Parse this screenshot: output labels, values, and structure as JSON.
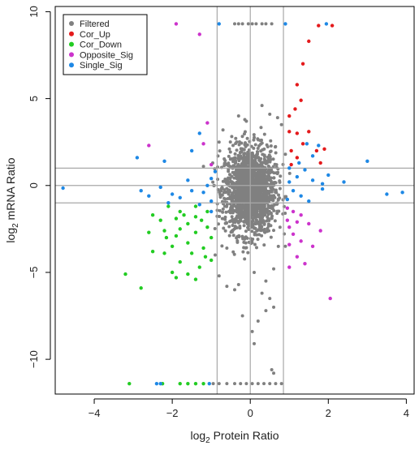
{
  "chart_data": {
    "type": "scatter",
    "title": "",
    "xlabel": "Protein Ratio",
    "xlabel_prefix": "log",
    "xlabel_sub": "2",
    "ylabel": "mRNA Ratio",
    "ylabel_prefix": "log",
    "ylabel_sub": "2",
    "xlim": [
      -5.0,
      4.2
    ],
    "ylim": [
      -12.0,
      10.3
    ],
    "xticks": [
      -4,
      -2,
      0,
      2,
      4
    ],
    "yticks": [
      -10,
      -5,
      0,
      5,
      10
    ],
    "grid": false,
    "legend": "top-left",
    "thresholds": {
      "x": [
        -0.85,
        0.0,
        0.85
      ],
      "y": [
        -1.0,
        0.0,
        1.0
      ]
    },
    "series": [
      {
        "name": "Filtered",
        "color": "#808080",
        "count": 1800,
        "points": [
          [
            -0.4,
            9.3
          ],
          [
            -0.3,
            9.3
          ],
          [
            -0.2,
            9.3
          ],
          [
            -0.05,
            9.3
          ],
          [
            0.05,
            9.3
          ],
          [
            0.15,
            9.3
          ],
          [
            0.3,
            9.3
          ],
          [
            0.4,
            9.3
          ],
          [
            0.55,
            9.3
          ],
          [
            -0.95,
            -11.4
          ],
          [
            -0.8,
            -11.4
          ],
          [
            -0.6,
            -11.4
          ],
          [
            -0.4,
            -11.4
          ],
          [
            -0.25,
            -11.4
          ],
          [
            -0.1,
            -11.4
          ],
          [
            0.05,
            -11.4
          ],
          [
            0.2,
            -11.4
          ],
          [
            0.35,
            -11.4
          ],
          [
            0.5,
            -11.4
          ],
          [
            0.65,
            -11.4
          ],
          [
            0.8,
            -11.4
          ],
          [
            0.5,
            -6.5
          ],
          [
            0.4,
            -7.2
          ],
          [
            0.05,
            -8.4
          ],
          [
            0.1,
            -9.1
          ],
          [
            0.6,
            -7.0
          ],
          [
            -0.4,
            -6.0
          ],
          [
            0.6,
            -10.8
          ],
          [
            0.55,
            -10.6
          ],
          [
            -0.2,
            -7.5
          ],
          [
            0.3,
            -6.2
          ],
          [
            -0.6,
            -5.8
          ],
          [
            0.2,
            -7.8
          ],
          [
            0.3,
            4.6
          ],
          [
            0.5,
            4.1
          ],
          [
            -0.3,
            4.0
          ],
          [
            0.8,
            3.5
          ],
          [
            0.7,
            3.9
          ],
          [
            -0.8,
            2.5
          ],
          [
            0.9,
            1.8
          ],
          [
            -1.2,
            1.1
          ],
          [
            -0.7,
            3.2
          ],
          [
            -0.1,
            3.7
          ],
          [
            -0.9,
            -4.0
          ],
          [
            0.9,
            -3.5
          ],
          [
            -0.6,
            -3.6
          ],
          [
            0.6,
            -4.8
          ],
          [
            -0.8,
            -5.2
          ],
          [
            0.1,
            -5.0
          ],
          [
            0.4,
            -5.5
          ],
          [
            -0.3,
            -5.7
          ]
        ],
        "cloud": {
          "center": [
            0.0,
            -0.3
          ],
          "sd": [
            0.32,
            1.25
          ],
          "n": 1750
        }
      },
      {
        "name": "Cor_Up",
        "color": "#e41a1c",
        "points": [
          [
            1.75,
            9.2
          ],
          [
            2.1,
            9.2
          ],
          [
            1.5,
            8.3
          ],
          [
            1.35,
            7.0
          ],
          [
            1.2,
            5.8
          ],
          [
            1.15,
            4.4
          ],
          [
            1.3,
            4.9
          ],
          [
            1.0,
            4.0
          ],
          [
            1.0,
            3.1
          ],
          [
            1.2,
            3.0
          ],
          [
            1.5,
            3.1
          ],
          [
            1.05,
            2.0
          ],
          [
            1.35,
            2.4
          ],
          [
            1.7,
            2.0
          ],
          [
            1.2,
            1.6
          ],
          [
            1.05,
            1.2
          ],
          [
            1.9,
            2.1
          ],
          [
            1.8,
            1.3
          ]
        ]
      },
      {
        "name": "Cor_Down",
        "color": "#22cc22",
        "points": [
          [
            -1.4,
            -1.2
          ],
          [
            -1.1,
            -1.5
          ],
          [
            -1.8,
            -1.5
          ],
          [
            -2.1,
            -1.2
          ],
          [
            -1.4,
            -1.8
          ],
          [
            -1.9,
            -1.9
          ],
          [
            -2.3,
            -2.0
          ],
          [
            -1.6,
            -2.2
          ],
          [
            -1.1,
            -2.4
          ],
          [
            -1.8,
            -2.5
          ],
          [
            -2.2,
            -2.6
          ],
          [
            -1.4,
            -2.7
          ],
          [
            -1.9,
            -2.9
          ],
          [
            -1.0,
            -3.0
          ],
          [
            -2.6,
            -2.7
          ],
          [
            -1.6,
            -3.3
          ],
          [
            -1.2,
            -3.6
          ],
          [
            -2.0,
            -3.5
          ],
          [
            -1.5,
            -3.9
          ],
          [
            -2.2,
            -3.9
          ],
          [
            -1.0,
            -4.3
          ],
          [
            -1.8,
            -4.4
          ],
          [
            -1.3,
            -4.7
          ],
          [
            -2.5,
            -3.8
          ],
          [
            -1.9,
            -5.3
          ],
          [
            -1.6,
            -5.1
          ],
          [
            -1.4,
            -5.4
          ],
          [
            -1.15,
            -4.1
          ],
          [
            -2.0,
            -5.0
          ],
          [
            -3.2,
            -5.1
          ],
          [
            -2.8,
            -5.9
          ],
          [
            -2.5,
            -1.7
          ],
          [
            -1.25,
            -2.0
          ],
          [
            -1.7,
            -1.7
          ],
          [
            -2.15,
            -3.0
          ],
          [
            -3.1,
            -11.4
          ],
          [
            -2.25,
            -11.4
          ],
          [
            -1.8,
            -11.4
          ],
          [
            -1.6,
            -11.4
          ],
          [
            -1.4,
            -11.4
          ],
          [
            -1.2,
            -11.4
          ]
        ]
      },
      {
        "name": "Opposite_Sig",
        "color": "#cc33cc",
        "points": [
          [
            -1.9,
            9.3
          ],
          [
            -1.3,
            8.7
          ],
          [
            -1.1,
            3.6
          ],
          [
            -1.2,
            2.4
          ],
          [
            -2.6,
            2.3
          ],
          [
            -1.0,
            1.2
          ],
          [
            0.95,
            -1.3
          ],
          [
            1.1,
            -1.5
          ],
          [
            1.3,
            -1.7
          ],
          [
            0.95,
            -2.0
          ],
          [
            1.2,
            -2.1
          ],
          [
            1.0,
            -2.4
          ],
          [
            1.5,
            -2.2
          ],
          [
            1.1,
            -2.8
          ],
          [
            1.3,
            -3.2
          ],
          [
            1.0,
            -3.4
          ],
          [
            1.6,
            -3.5
          ],
          [
            1.2,
            -4.1
          ],
          [
            1.4,
            -4.5
          ],
          [
            1.0,
            -4.7
          ],
          [
            2.05,
            -6.5
          ],
          [
            1.8,
            -2.6
          ]
        ]
      },
      {
        "name": "Single_Sig",
        "color": "#1e88e5",
        "points": [
          [
            1.95,
            9.3
          ],
          [
            0.9,
            9.3
          ],
          [
            -0.8,
            9.3
          ],
          [
            -2.9,
            1.6
          ],
          [
            -2.2,
            1.4
          ],
          [
            -1.5,
            2.0
          ],
          [
            -1.3,
            3.0
          ],
          [
            -0.9,
            0.8
          ],
          [
            -1.6,
            0.3
          ],
          [
            -2.3,
            -0.1
          ],
          [
            -2.8,
            -0.3
          ],
          [
            -4.8,
            -0.15
          ],
          [
            -1.2,
            -0.4
          ],
          [
            -1.8,
            -0.7
          ],
          [
            -2.1,
            -1.0
          ],
          [
            -1.0,
            -0.9
          ],
          [
            -1.3,
            -1.1
          ],
          [
            -1.0,
            0.4
          ],
          [
            -1.1,
            0.0
          ],
          [
            -1.5,
            -0.3
          ],
          [
            -2.6,
            -0.6
          ],
          [
            -2.0,
            -0.5
          ],
          [
            -1.0,
            -1.5
          ],
          [
            1.0,
            0.2
          ],
          [
            1.2,
            0.5
          ],
          [
            1.4,
            0.9
          ],
          [
            1.6,
            0.3
          ],
          [
            1.85,
            0.1
          ],
          [
            1.1,
            -0.3
          ],
          [
            1.3,
            -0.6
          ],
          [
            1.5,
            -0.9
          ],
          [
            0.95,
            -0.8
          ],
          [
            1.6,
            1.7
          ],
          [
            1.45,
            2.4
          ],
          [
            1.75,
            2.3
          ],
          [
            1.85,
            -0.2
          ],
          [
            2.4,
            0.2
          ],
          [
            3.0,
            1.4
          ],
          [
            3.5,
            -0.5
          ],
          [
            3.9,
            -0.4
          ],
          [
            2.0,
            0.6
          ],
          [
            1.0,
            1.0
          ],
          [
            1.25,
            1.3
          ],
          [
            -2.4,
            -11.4
          ],
          [
            -2.3,
            -11.4
          ],
          [
            -1.05,
            -11.4
          ]
        ]
      }
    ]
  }
}
